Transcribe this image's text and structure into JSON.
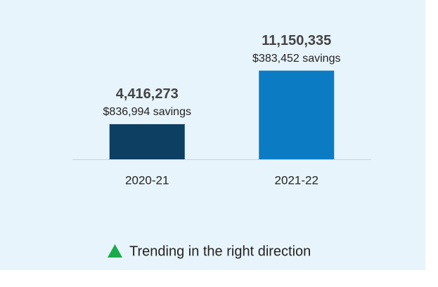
{
  "chart_data": {
    "type": "bar",
    "categories": [
      "2020-21",
      "2021-22"
    ],
    "values": [
      4416273,
      11150335
    ],
    "value_labels": [
      "4,416,273",
      "11,150,335"
    ],
    "savings_labels": [
      "$836,994 savings",
      "$383,452 savings"
    ],
    "colors": [
      "#0d3f63",
      "#0b7bc4"
    ],
    "ylim": [
      0,
      12000000
    ],
    "annotation": "Trending in the right direction",
    "annotation_color": "#1aaa4a"
  }
}
